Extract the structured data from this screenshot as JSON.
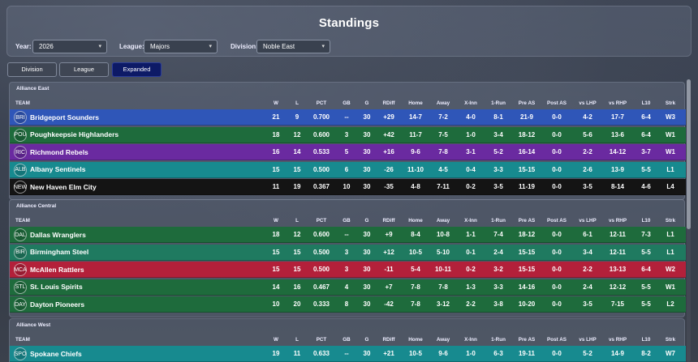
{
  "title": "Standings",
  "filters": {
    "year": {
      "label": "Year:",
      "value": "2026"
    },
    "league": {
      "label": "League:",
      "value": "Majors"
    },
    "division": {
      "label": "Division:",
      "value": "Noble East"
    }
  },
  "tabs": [
    {
      "label": "Division",
      "active": false
    },
    {
      "label": "League",
      "active": false
    },
    {
      "label": "Expanded",
      "active": true
    }
  ],
  "columns": [
    "TEAM",
    "W",
    "L",
    "PCT",
    "GB",
    "G",
    "RDiff",
    "Home",
    "Away",
    "X-Inn",
    "1-Run",
    "Pre AS",
    "Post AS",
    "vs LHP",
    "vs RHP",
    "L10",
    "Strk"
  ],
  "colors": {
    "blue": "#2f56b8",
    "green": "#1e6b3c",
    "purple": "#6a2aa0",
    "teal": "#178a8f",
    "black": "#141414",
    "red": "#b3203a",
    "seagreen": "#1f7a60"
  },
  "divisions": [
    {
      "name": "Alliance East",
      "teams": [
        {
          "abbr": "BRI",
          "name": "Bridgeport Sounders",
          "color": "blue",
          "stats": [
            "21",
            "9",
            "0.700",
            "--",
            "30",
            "+29",
            "14-7",
            "7-2",
            "4-0",
            "8-1",
            "21-9",
            "0-0",
            "4-2",
            "17-7",
            "6-4",
            "W3"
          ]
        },
        {
          "abbr": "POU",
          "name": "Poughkeepsie Highlanders",
          "color": "green",
          "stats": [
            "18",
            "12",
            "0.600",
            "3",
            "30",
            "+42",
            "11-7",
            "7-5",
            "1-0",
            "3-4",
            "18-12",
            "0-0",
            "5-6",
            "13-6",
            "6-4",
            "W1"
          ]
        },
        {
          "abbr": "RIC",
          "name": "Richmond Rebels",
          "color": "purple",
          "stats": [
            "16",
            "14",
            "0.533",
            "5",
            "30",
            "+16",
            "9-6",
            "7-8",
            "3-1",
            "5-2",
            "16-14",
            "0-0",
            "2-2",
            "14-12",
            "3-7",
            "W1"
          ]
        },
        {
          "abbr": "ALB",
          "name": "Albany Sentinels",
          "color": "teal",
          "stats": [
            "15",
            "15",
            "0.500",
            "6",
            "30",
            "-26",
            "11-10",
            "4-5",
            "0-4",
            "3-3",
            "15-15",
            "0-0",
            "2-6",
            "13-9",
            "5-5",
            "L1"
          ]
        },
        {
          "abbr": "NEW",
          "name": "New Haven Elm City",
          "color": "black",
          "stats": [
            "11",
            "19",
            "0.367",
            "10",
            "30",
            "-35",
            "4-8",
            "7-11",
            "0-2",
            "3-5",
            "11-19",
            "0-0",
            "3-5",
            "8-14",
            "4-6",
            "L4"
          ]
        }
      ]
    },
    {
      "name": "Alliance Central",
      "teams": [
        {
          "abbr": "DAL",
          "name": "Dallas Wranglers",
          "color": "green",
          "stats": [
            "18",
            "12",
            "0.600",
            "--",
            "30",
            "+9",
            "8-4",
            "10-8",
            "1-1",
            "7-4",
            "18-12",
            "0-0",
            "6-1",
            "12-11",
            "7-3",
            "L1"
          ]
        },
        {
          "abbr": "BIR",
          "name": "Birmingham Steel",
          "color": "seagreen",
          "stats": [
            "15",
            "15",
            "0.500",
            "3",
            "30",
            "+12",
            "10-5",
            "5-10",
            "0-1",
            "2-4",
            "15-15",
            "0-0",
            "3-4",
            "12-11",
            "5-5",
            "L1"
          ]
        },
        {
          "abbr": "MCA",
          "name": "McAllen Rattlers",
          "color": "red",
          "stats": [
            "15",
            "15",
            "0.500",
            "3",
            "30",
            "-11",
            "5-4",
            "10-11",
            "0-2",
            "3-2",
            "15-15",
            "0-0",
            "2-2",
            "13-13",
            "6-4",
            "W2"
          ]
        },
        {
          "abbr": "STL",
          "name": "St. Louis Spirits",
          "color": "green",
          "stats": [
            "14",
            "16",
            "0.467",
            "4",
            "30",
            "+7",
            "7-8",
            "7-8",
            "1-3",
            "3-3",
            "14-16",
            "0-0",
            "2-4",
            "12-12",
            "5-5",
            "W1"
          ]
        },
        {
          "abbr": "DAY",
          "name": "Dayton Pioneers",
          "color": "green",
          "stats": [
            "10",
            "20",
            "0.333",
            "8",
            "30",
            "-42",
            "7-8",
            "3-12",
            "2-2",
            "3-8",
            "10-20",
            "0-0",
            "3-5",
            "7-15",
            "5-5",
            "L2"
          ]
        }
      ]
    },
    {
      "name": "Alliance West",
      "teams": [
        {
          "abbr": "SPO",
          "name": "Spokane Chiefs",
          "color": "teal",
          "stats": [
            "19",
            "11",
            "0.633",
            "--",
            "30",
            "+21",
            "10-5",
            "9-6",
            "1-0",
            "6-3",
            "19-11",
            "0-0",
            "5-2",
            "14-9",
            "8-2",
            "W7"
          ]
        }
      ]
    }
  ]
}
